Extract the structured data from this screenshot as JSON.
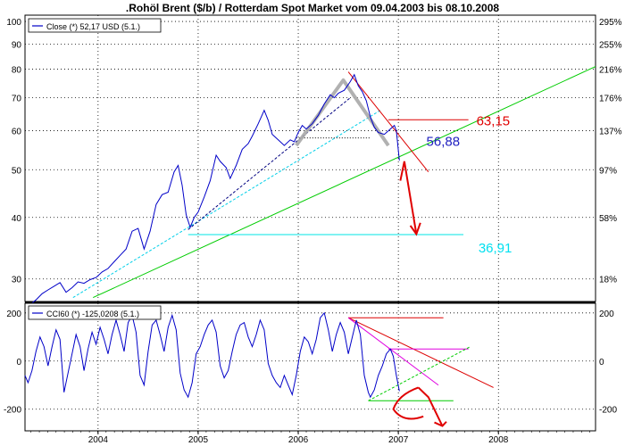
{
  "title": ".Rohöl Brent ($/b) / Rotterdam Spot Market vom 09.04.2003 bis 08.10.2008",
  "colors": {
    "price": "#0000c8",
    "support_line": "#00cc00",
    "resistance": "#dd0000",
    "horizontal_cyan": "#00e5e5",
    "dashed_cyan": "#00cfe8",
    "dashed_navy": "#000080",
    "magenta": "#e000e0",
    "gray_pattern": "#a8a8a8",
    "annotation_red": "#e00000",
    "annotation_blue": "#2020c0",
    "annotation_cyan": "#00e0f0",
    "grid": "#000000"
  },
  "chart_data": [
    {
      "type": "line",
      "name": "price-panel",
      "legend": "Close (*) 52,17 USD (5.1.)",
      "y_scale": "log",
      "ylim": [
        27,
        103
      ],
      "left_ticks": [
        "100",
        "90",
        "80",
        "70",
        "60",
        "50",
        "40",
        "30"
      ],
      "left_tick_values": [
        100,
        90,
        80,
        70,
        60,
        50,
        40,
        30
      ],
      "right_ticks": [
        "295%",
        "255%",
        "216%",
        "176%",
        "137%",
        "97%",
        "58%",
        "18%"
      ],
      "right_tick_values": [
        100,
        90,
        80,
        70,
        60,
        50,
        40,
        30
      ],
      "annotations": [
        "63,15",
        "56,88",
        "36,91"
      ],
      "annotation_values": [
        63.15,
        56.88,
        36.91
      ],
      "series": [
        {
          "legend_label": "Close (*) 52,17 USD (5.1.)",
          "points": [
            [
              2003.27,
              25.4
            ],
            [
              2003.32,
              26.6
            ],
            [
              2003.38,
              27.2
            ],
            [
              2003.44,
              28.0
            ],
            [
              2003.5,
              28.5
            ],
            [
              2003.56,
              29.0
            ],
            [
              2003.62,
              29.5
            ],
            [
              2003.68,
              28.2
            ],
            [
              2003.74,
              28.8
            ],
            [
              2003.8,
              29.6
            ],
            [
              2003.86,
              29.4
            ],
            [
              2003.92,
              29.9
            ],
            [
              2003.98,
              30.2
            ],
            [
              2004.04,
              31.0
            ],
            [
              2004.1,
              31.5
            ],
            [
              2004.16,
              32.5
            ],
            [
              2004.22,
              33.5
            ],
            [
              2004.28,
              34.5
            ],
            [
              2004.34,
              37.5
            ],
            [
              2004.4,
              38.0
            ],
            [
              2004.46,
              34.5
            ],
            [
              2004.52,
              37.5
            ],
            [
              2004.58,
              42.5
            ],
            [
              2004.64,
              44.5
            ],
            [
              2004.7,
              45.0
            ],
            [
              2004.76,
              49.5
            ],
            [
              2004.8,
              51.0
            ],
            [
              2004.84,
              46.5
            ],
            [
              2004.88,
              40.5
            ],
            [
              2004.92,
              38.2
            ],
            [
              2004.96,
              40.0
            ],
            [
              2005.0,
              41.0
            ],
            [
              2005.06,
              44.0
            ],
            [
              2005.12,
              47.5
            ],
            [
              2005.18,
              53.5
            ],
            [
              2005.22,
              52.0
            ],
            [
              2005.28,
              50.5
            ],
            [
              2005.32,
              48.0
            ],
            [
              2005.38,
              51.0
            ],
            [
              2005.44,
              55.0
            ],
            [
              2005.5,
              56.5
            ],
            [
              2005.54,
              58.5
            ],
            [
              2005.6,
              62.0
            ],
            [
              2005.66,
              66.0
            ],
            [
              2005.7,
              63.0
            ],
            [
              2005.74,
              59.0
            ],
            [
              2005.8,
              57.5
            ],
            [
              2005.86,
              56.0
            ],
            [
              2005.92,
              57.5
            ],
            [
              2005.96,
              57.0
            ],
            [
              2006.0,
              59.5
            ],
            [
              2006.04,
              61.5
            ],
            [
              2006.08,
              60.5
            ],
            [
              2006.14,
              62.0
            ],
            [
              2006.2,
              64.5
            ],
            [
              2006.26,
              68.0
            ],
            [
              2006.32,
              71.0
            ],
            [
              2006.36,
              70.0
            ],
            [
              2006.4,
              71.5
            ],
            [
              2006.46,
              72.5
            ],
            [
              2006.52,
              75.5
            ],
            [
              2006.56,
              78.0
            ],
            [
              2006.6,
              74.0
            ],
            [
              2006.64,
              72.0
            ],
            [
              2006.68,
              69.0
            ],
            [
              2006.72,
              64.0
            ],
            [
              2006.76,
              61.0
            ],
            [
              2006.8,
              59.5
            ],
            [
              2006.86,
              59.0
            ],
            [
              2006.92,
              60.5
            ],
            [
              2006.96,
              61.5
            ],
            [
              2006.98,
              60.0
            ],
            [
              2007.01,
              52.2
            ]
          ]
        }
      ]
    },
    {
      "type": "line",
      "name": "cci-panel",
      "legend": "CCI60 (*) -125,0208 (5.1.)",
      "ylim": [
        -290,
        240
      ],
      "left_ticks": [
        "200",
        "0",
        "-200"
      ],
      "left_tick_values": [
        200,
        0,
        -200
      ],
      "right_ticks": [
        "200",
        "0",
        "-200"
      ],
      "right_tick_values": [
        200,
        0,
        -200
      ],
      "series": [
        {
          "legend_label": "CCI60 (*) -125,0208 (5.1.)",
          "points": [
            [
              2003.27,
              -60
            ],
            [
              2003.3,
              -90
            ],
            [
              2003.34,
              -40
            ],
            [
              2003.38,
              40
            ],
            [
              2003.42,
              100
            ],
            [
              2003.46,
              60
            ],
            [
              2003.5,
              -20
            ],
            [
              2003.54,
              60
            ],
            [
              2003.58,
              130
            ],
            [
              2003.62,
              90
            ],
            [
              2003.66,
              -130
            ],
            [
              2003.7,
              -50
            ],
            [
              2003.74,
              30
            ],
            [
              2003.78,
              110
            ],
            [
              2003.82,
              60
            ],
            [
              2003.86,
              -40
            ],
            [
              2003.9,
              50
            ],
            [
              2003.94,
              120
            ],
            [
              2003.98,
              70
            ],
            [
              2004.02,
              140
            ],
            [
              2004.06,
              90
            ],
            [
              2004.1,
              30
            ],
            [
              2004.14,
              110
            ],
            [
              2004.18,
              170
            ],
            [
              2004.22,
              110
            ],
            [
              2004.26,
              40
            ],
            [
              2004.3,
              160
            ],
            [
              2004.34,
              190
            ],
            [
              2004.38,
              120
            ],
            [
              2004.42,
              -60
            ],
            [
              2004.46,
              -100
            ],
            [
              2004.5,
              40
            ],
            [
              2004.54,
              150
            ],
            [
              2004.58,
              170
            ],
            [
              2004.62,
              110
            ],
            [
              2004.66,
              40
            ],
            [
              2004.7,
              140
            ],
            [
              2004.74,
              190
            ],
            [
              2004.78,
              130
            ],
            [
              2004.82,
              -50
            ],
            [
              2004.86,
              -120
            ],
            [
              2004.9,
              -150
            ],
            [
              2004.94,
              -90
            ],
            [
              2004.98,
              30
            ],
            [
              2005.02,
              60
            ],
            [
              2005.06,
              110
            ],
            [
              2005.1,
              150
            ],
            [
              2005.14,
              170
            ],
            [
              2005.18,
              120
            ],
            [
              2005.22,
              -20
            ],
            [
              2005.26,
              -70
            ],
            [
              2005.3,
              -40
            ],
            [
              2005.34,
              40
            ],
            [
              2005.38,
              110
            ],
            [
              2005.42,
              150
            ],
            [
              2005.46,
              160
            ],
            [
              2005.5,
              100
            ],
            [
              2005.54,
              60
            ],
            [
              2005.58,
              110
            ],
            [
              2005.62,
              170
            ],
            [
              2005.66,
              130
            ],
            [
              2005.7,
              -10
            ],
            [
              2005.74,
              -60
            ],
            [
              2005.78,
              -90
            ],
            [
              2005.82,
              -110
            ],
            [
              2005.86,
              -60
            ],
            [
              2005.9,
              -100
            ],
            [
              2005.94,
              -140
            ],
            [
              2005.98,
              -60
            ],
            [
              2006.02,
              40
            ],
            [
              2006.06,
              100
            ],
            [
              2006.1,
              80
            ],
            [
              2006.14,
              30
            ],
            [
              2006.18,
              90
            ],
            [
              2006.22,
              180
            ],
            [
              2006.26,
              200
            ],
            [
              2006.3,
              130
            ],
            [
              2006.34,
              40
            ],
            [
              2006.38,
              110
            ],
            [
              2006.42,
              160
            ],
            [
              2006.46,
              120
            ],
            [
              2006.5,
              30
            ],
            [
              2006.54,
              100
            ],
            [
              2006.58,
              170
            ],
            [
              2006.62,
              110
            ],
            [
              2006.66,
              -60
            ],
            [
              2006.7,
              -130
            ],
            [
              2006.72,
              -150
            ],
            [
              2006.76,
              -120
            ],
            [
              2006.8,
              -60
            ],
            [
              2006.84,
              -20
            ],
            [
              2006.88,
              30
            ],
            [
              2006.92,
              50
            ],
            [
              2006.95,
              20
            ],
            [
              2006.98,
              -60
            ],
            [
              2007.01,
              -125
            ]
          ]
        }
      ]
    }
  ],
  "x_axis": {
    "labels": [
      "2004",
      "2005",
      "2006",
      "2007",
      "2008"
    ],
    "year_values": [
      2004,
      2005,
      2006,
      2007,
      2008
    ],
    "range": [
      2003.27,
      2008.97
    ]
  }
}
